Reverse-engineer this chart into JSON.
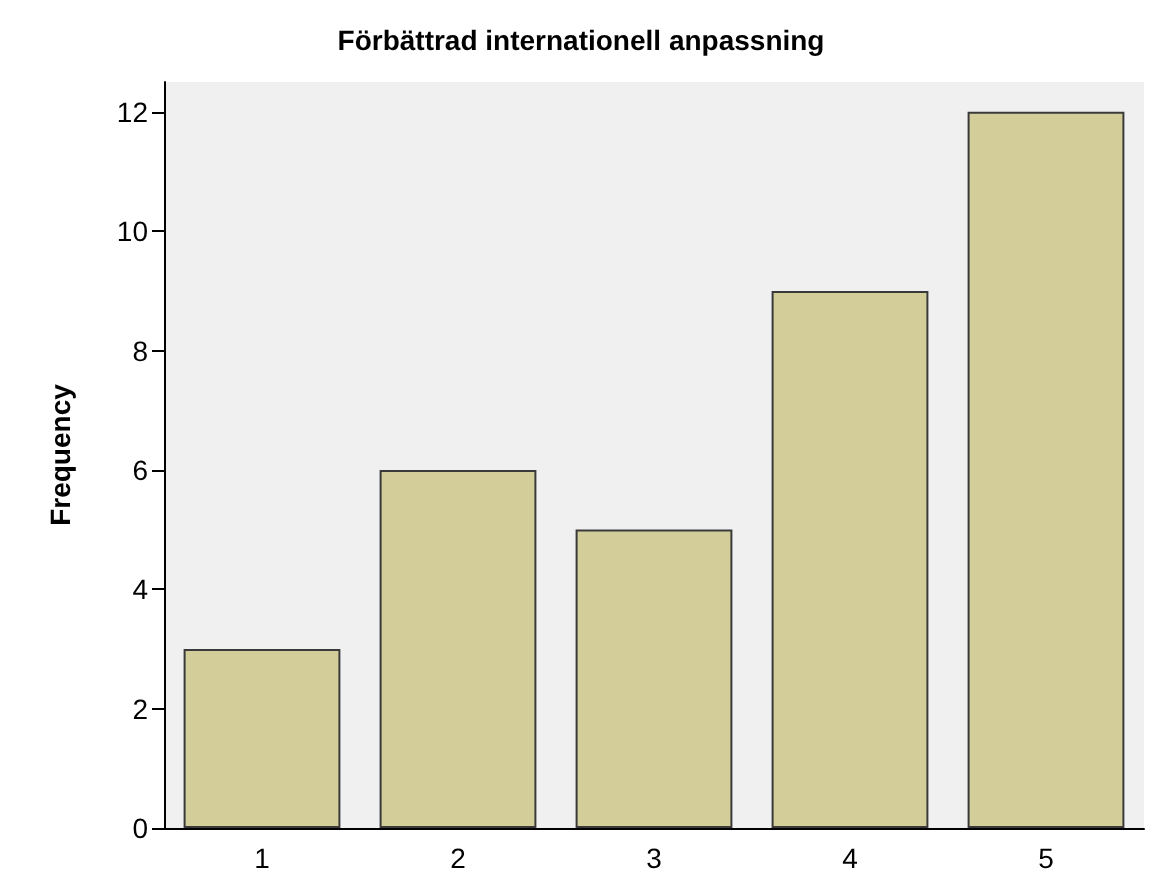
{
  "chart_data": {
    "type": "bar",
    "title": "Förbättrad internationell anpassning",
    "ylabel": "Frequency",
    "categories": [
      "1",
      "2",
      "3",
      "4",
      "5"
    ],
    "values": [
      3,
      6,
      5,
      9,
      12
    ],
    "color": "#d3ce99",
    "ylim": [
      0,
      12.5
    ],
    "yticks": [
      0,
      2,
      4,
      6,
      8,
      10,
      12
    ],
    "grid": false
  }
}
